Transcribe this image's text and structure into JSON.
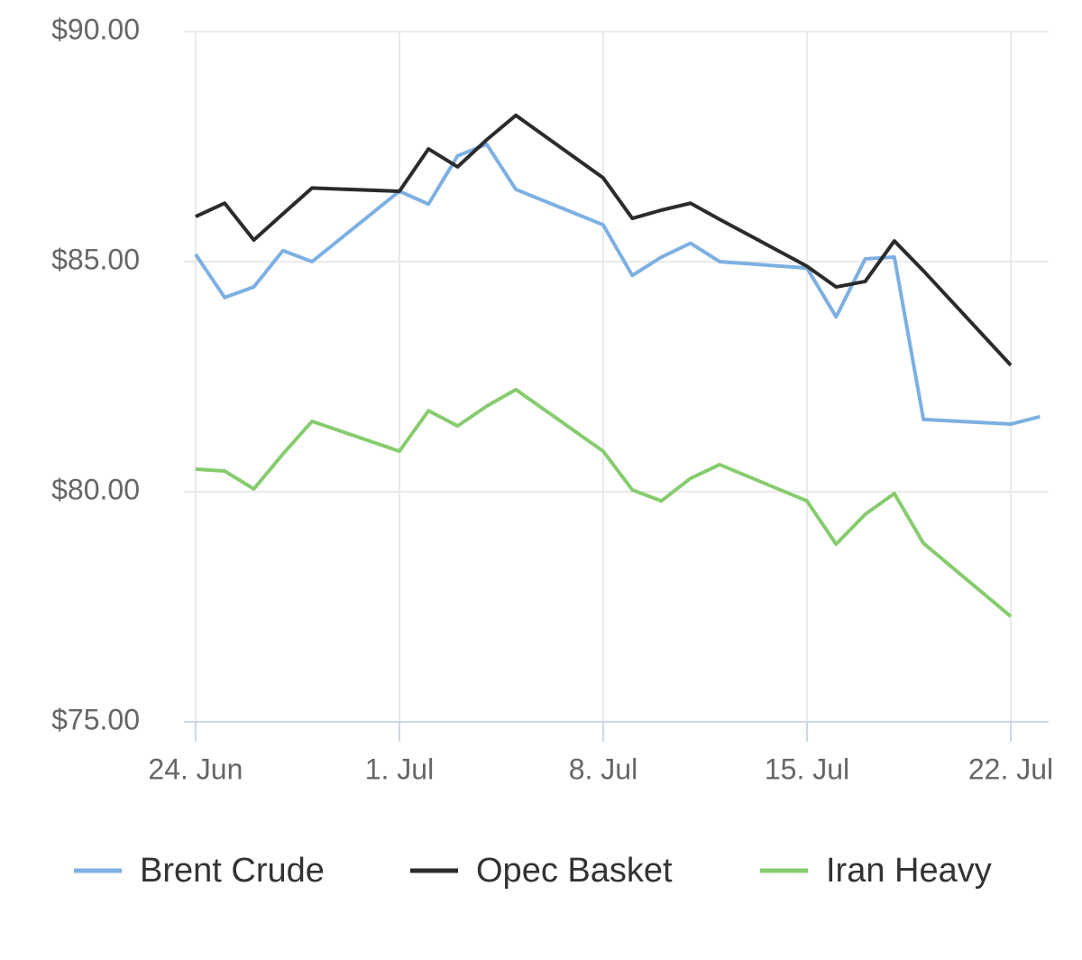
{
  "chart_data": {
    "type": "line",
    "x": [
      0,
      1,
      2,
      3,
      4,
      7,
      8,
      9,
      10,
      11,
      14,
      15,
      16,
      17,
      18,
      21,
      22,
      23,
      24,
      25,
      28,
      29
    ],
    "xlim": [
      -0.4,
      29.3
    ],
    "xticks": [
      {
        "value": 0,
        "label": "24. Jun"
      },
      {
        "value": 7,
        "label": "1. Jul"
      },
      {
        "value": 14,
        "label": "8. Jul"
      },
      {
        "value": 21,
        "label": "15. Jul"
      },
      {
        "value": 28,
        "label": "22. Jul"
      }
    ],
    "ylim": [
      75,
      90
    ],
    "yticks": [
      {
        "value": 75,
        "label": "$75.00"
      },
      {
        "value": 80,
        "label": "$80.00"
      },
      {
        "value": 85,
        "label": "$85.00"
      },
      {
        "value": 90,
        "label": "$90.00"
      }
    ],
    "grid": true,
    "legend": "bottom",
    "series": [
      {
        "name": "Brent Crude",
        "color": "#7cb0e3",
        "values": [
          85.16,
          84.22,
          84.45,
          85.24,
          85.0,
          86.53,
          86.25,
          87.3,
          87.55,
          86.57,
          85.8,
          84.7,
          85.1,
          85.4,
          85.0,
          84.86,
          83.8,
          85.06,
          85.1,
          81.57,
          81.47,
          81.63
        ]
      },
      {
        "name": "Opec Basket",
        "color": "#2b2b2b",
        "values": [
          85.98,
          86.27,
          85.47,
          86.04,
          86.6,
          86.53,
          87.45,
          87.06,
          87.65,
          88.18,
          86.82,
          85.94,
          86.12,
          86.27,
          85.92,
          84.9,
          84.45,
          84.57,
          85.45,
          84.8,
          82.75,
          null
        ]
      },
      {
        "name": "Iran Heavy",
        "color": "#86cc6e",
        "values": [
          80.49,
          80.45,
          80.06,
          80.82,
          81.53,
          80.88,
          81.76,
          81.43,
          81.86,
          82.22,
          80.88,
          80.04,
          79.8,
          80.29,
          80.59,
          79.8,
          78.86,
          79.51,
          79.96,
          78.88,
          77.29,
          null
        ]
      }
    ]
  }
}
